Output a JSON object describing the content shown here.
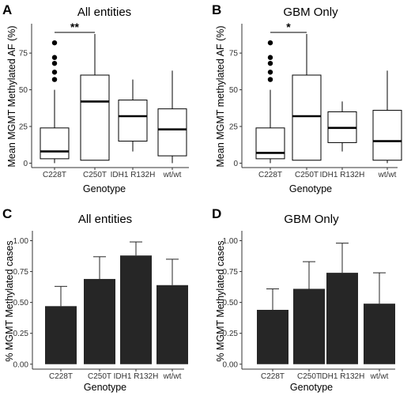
{
  "figure": {
    "panels": [
      {
        "letter": "A",
        "title": "All entities",
        "xlabel": "Genotype",
        "ylabel": "Mean MGMT Methylated AF (%)"
      },
      {
        "letter": "B",
        "title": "GBM Only",
        "xlabel": "Genotype",
        "ylabel": "Mean MGMT methylated AF (%)"
      },
      {
        "letter": "C",
        "title": "All entities",
        "xlabel": "Genotype",
        "ylabel": "% MGMT Methylated cases"
      },
      {
        "letter": "D",
        "title": "GBM Only",
        "xlabel": "Genotype",
        "ylabel": "% MGMT Methylated cases"
      }
    ]
  },
  "chart_data": [
    {
      "type": "box",
      "title": "All entities",
      "xlabel": "Genotype",
      "ylabel": "Mean MGMT Methylated AF (%)",
      "categories": [
        "C228T",
        "C250T",
        "IDH1 R132H",
        "wt/wt"
      ],
      "ylim": [
        -3,
        95
      ],
      "yticks": [
        0,
        25,
        50,
        75
      ],
      "boxes": [
        {
          "lower_whisker": 0,
          "q1": 3,
          "median": 8,
          "q3": 24,
          "upper_whisker": 50,
          "outliers": [
            57,
            62,
            68,
            72,
            82
          ]
        },
        {
          "lower_whisker": 2,
          "q1": 2,
          "median": 42,
          "q3": 60,
          "upper_whisker": 88,
          "outliers": []
        },
        {
          "lower_whisker": 8,
          "q1": 15,
          "median": 32,
          "q3": 43,
          "upper_whisker": 57,
          "outliers": []
        },
        {
          "lower_whisker": 0,
          "q1": 5,
          "median": 23,
          "q3": 37,
          "upper_whisker": 63,
          "outliers": []
        }
      ],
      "significance": {
        "from": 0,
        "to": 1,
        "label": "**"
      }
    },
    {
      "type": "box",
      "title": "GBM Only",
      "xlabel": "Genotype",
      "ylabel": "Mean MGMT methylated AF (%)",
      "categories": [
        "C228T",
        "C250T",
        "IDH1 R132H",
        "wt/wt"
      ],
      "ylim": [
        -3,
        95
      ],
      "yticks": [
        0,
        25,
        50,
        75
      ],
      "boxes": [
        {
          "lower_whisker": 0,
          "q1": 3,
          "median": 7,
          "q3": 24,
          "upper_whisker": 50,
          "outliers": [
            57,
            62,
            68,
            72,
            82
          ]
        },
        {
          "lower_whisker": 2,
          "q1": 2,
          "median": 32,
          "q3": 60,
          "upper_whisker": 88,
          "outliers": []
        },
        {
          "lower_whisker": 8,
          "q1": 14,
          "median": 24,
          "q3": 35,
          "upper_whisker": 42,
          "outliers": []
        },
        {
          "lower_whisker": 0,
          "q1": 2,
          "median": 15,
          "q3": 36,
          "upper_whisker": 63,
          "outliers": []
        }
      ],
      "significance": {
        "from": 0,
        "to": 1,
        "label": "*"
      }
    },
    {
      "type": "bar",
      "title": "All entities",
      "xlabel": "Genotype",
      "ylabel": "% MGMT Methylated cases",
      "categories": [
        "C228T",
        "C250T",
        "IDH1 R132H",
        "wt/wt"
      ],
      "values": [
        0.47,
        0.69,
        0.88,
        0.64
      ],
      "error_upper": [
        0.63,
        0.87,
        0.99,
        0.85
      ],
      "ylim": [
        -0.04,
        1.08
      ],
      "yticks": [
        "0.00",
        "0.25",
        "0.50",
        "0.75",
        "1.00"
      ]
    },
    {
      "type": "bar",
      "title": "GBM Only",
      "xlabel": "Genotype",
      "ylabel": "% MGMT Methylated cases",
      "categories": [
        "C228T",
        "C250T",
        "IDH1 R132H",
        "wt/wt"
      ],
      "values": [
        0.44,
        0.61,
        0.74,
        0.49
      ],
      "error_upper": [
        0.61,
        0.83,
        0.98,
        0.74
      ],
      "ylim": [
        -0.04,
        1.08
      ],
      "yticks": [
        "0.00",
        "0.25",
        "0.50",
        "0.75",
        "1.00"
      ]
    }
  ],
  "colors": {
    "bar_fill": "#262626",
    "box_stroke": "#000000",
    "axis": "#333333"
  }
}
